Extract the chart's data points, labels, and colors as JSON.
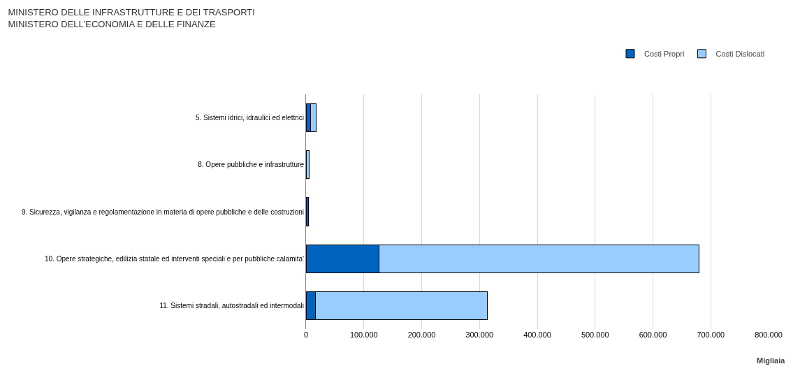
{
  "chart_data": {
    "type": "bar",
    "orientation": "horizontal",
    "stacked": true,
    "title": "MINISTERO DELLE INFRASTRUTTURE E DEI TRASPORTI\nMINISTERO DELL'ECONOMIA E DELLE FINANZE",
    "xlabel": "Migliaia",
    "categories": [
      "5. Sistemi idrici, idraulici ed elettrici",
      "8. Opere pubbliche e infrastrutture",
      "9. Sicurezza, vigilanza e regolamentazione in materia di opere pubbliche e delle costruzioni",
      "10. Opere strategiche, edilizia statale ed interventi speciali e per pubbliche calamita'",
      "11. Sistemi stradali, autostradali ed intermodali"
    ],
    "series": [
      {
        "name": "Costi Propri",
        "color": "#0063be",
        "values": [
          8000,
          null,
          4000,
          126000,
          16000
        ]
      },
      {
        "name": "Costi Dislocati",
        "color": "#99ccff",
        "values": [
          9000,
          5000,
          null,
          554000,
          298000
        ]
      }
    ],
    "xlim": [
      0,
      800000
    ],
    "xticks": [
      {
        "value": 0,
        "label": "0"
      },
      {
        "value": 100000,
        "label": "100.000"
      },
      {
        "value": 200000,
        "label": "200.000"
      },
      {
        "value": 300000,
        "label": "300.000"
      },
      {
        "value": 400000,
        "label": "400.000"
      },
      {
        "value": 500000,
        "label": "500.000"
      },
      {
        "value": 600000,
        "label": "600.000"
      },
      {
        "value": 700000,
        "label": "700.000"
      },
      {
        "value": 800000,
        "label": "800.000"
      }
    ],
    "grid": "x",
    "legend": "top right"
  }
}
